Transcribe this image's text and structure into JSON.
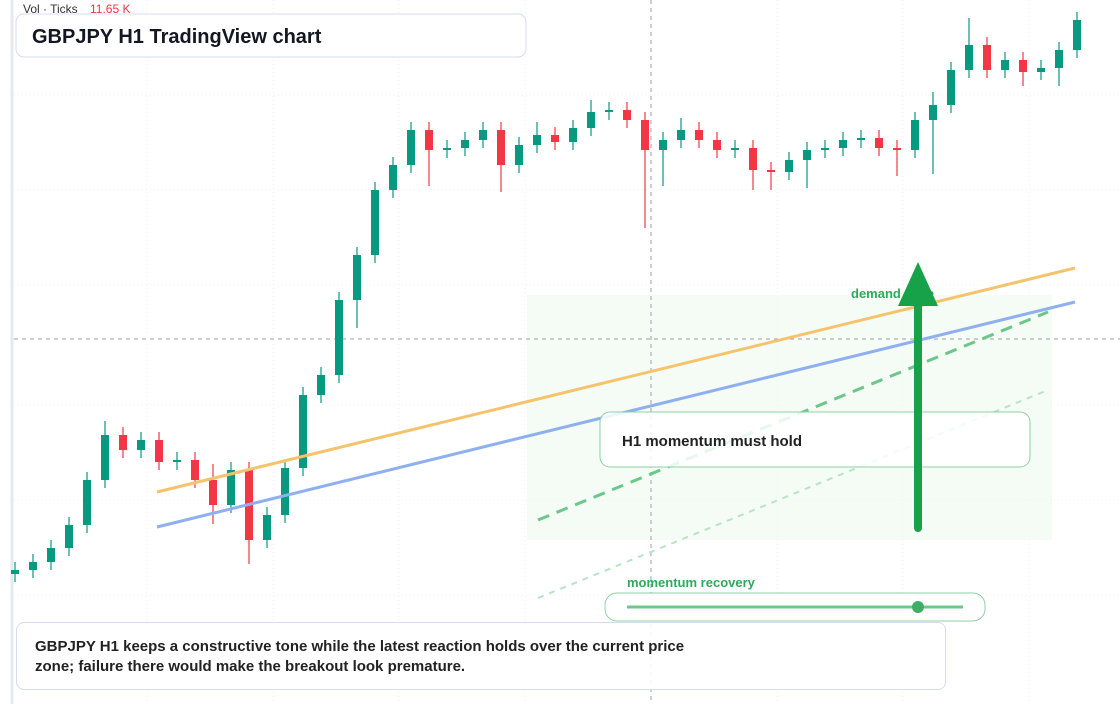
{
  "chart_data": {
    "type": "candlestick",
    "title": "GBPJPY H1 TradingView chart",
    "volume_label": "Vol · Ticks",
    "volume_value": "11.65 K",
    "up_color": "#089981",
    "down_color": "#f23645",
    "ylim": [
      0,
      70.4
    ],
    "candles": [
      [
        13.0,
        14.2,
        12.2,
        13.4
      ],
      [
        13.4,
        15.0,
        12.6,
        14.2
      ],
      [
        14.2,
        16.4,
        13.4,
        15.6
      ],
      [
        15.6,
        18.7,
        14.8,
        17.9
      ],
      [
        17.9,
        23.2,
        17.1,
        22.4
      ],
      [
        22.4,
        28.3,
        21.6,
        26.9
      ],
      [
        26.9,
        27.7,
        24.6,
        25.4
      ],
      [
        25.4,
        27.2,
        24.6,
        26.4
      ],
      [
        26.4,
        27.2,
        23.4,
        24.2
      ],
      [
        24.2,
        25.2,
        23.4,
        24.4
      ],
      [
        24.4,
        25.2,
        21.6,
        22.4
      ],
      [
        22.4,
        24.0,
        18.0,
        19.9
      ],
      [
        19.9,
        24.2,
        19.1,
        23.4
      ],
      [
        23.4,
        24.2,
        14.0,
        16.4
      ],
      [
        16.4,
        19.7,
        15.6,
        18.9
      ],
      [
        18.9,
        24.4,
        18.1,
        23.6
      ],
      [
        23.6,
        31.7,
        22.8,
        30.9
      ],
      [
        30.9,
        33.7,
        30.1,
        32.9
      ],
      [
        32.9,
        41.2,
        32.1,
        40.4
      ],
      [
        40.4,
        45.7,
        37.6,
        44.9
      ],
      [
        44.9,
        52.2,
        44.1,
        51.4
      ],
      [
        51.4,
        54.7,
        50.6,
        53.9
      ],
      [
        53.9,
        58.2,
        53.1,
        57.4
      ],
      [
        57.4,
        58.2,
        51.8,
        55.4
      ],
      [
        55.4,
        56.4,
        54.6,
        55.6
      ],
      [
        55.6,
        57.2,
        54.8,
        56.4
      ],
      [
        56.4,
        58.2,
        55.6,
        57.4
      ],
      [
        57.4,
        58.2,
        51.2,
        53.9
      ],
      [
        53.9,
        56.7,
        53.1,
        55.9
      ],
      [
        55.9,
        58.2,
        55.1,
        56.9
      ],
      [
        56.9,
        57.7,
        55.4,
        56.2
      ],
      [
        56.2,
        58.4,
        55.4,
        57.6
      ],
      [
        57.6,
        60.4,
        56.8,
        59.2
      ],
      [
        59.2,
        60.2,
        58.4,
        59.4
      ],
      [
        59.4,
        60.2,
        57.6,
        58.4
      ],
      [
        58.4,
        59.2,
        47.6,
        55.4
      ],
      [
        55.4,
        57.2,
        51.8,
        56.4
      ],
      [
        56.4,
        58.6,
        55.6,
        57.4
      ],
      [
        57.4,
        58.2,
        55.6,
        56.4
      ],
      [
        56.4,
        57.2,
        54.6,
        55.4
      ],
      [
        55.4,
        56.4,
        54.6,
        55.6
      ],
      [
        55.6,
        56.4,
        51.4,
        53.4
      ],
      [
        53.4,
        54.2,
        51.4,
        53.2
      ],
      [
        53.2,
        55.2,
        52.4,
        54.4
      ],
      [
        54.4,
        56.2,
        51.6,
        55.4
      ],
      [
        55.4,
        56.4,
        54.6,
        55.6
      ],
      [
        55.6,
        57.2,
        54.8,
        56.4
      ],
      [
        56.4,
        57.4,
        55.6,
        56.6
      ],
      [
        56.6,
        57.4,
        54.8,
        55.6
      ],
      [
        55.6,
        56.4,
        52.8,
        55.4
      ],
      [
        55.4,
        59.2,
        54.6,
        58.4
      ],
      [
        58.4,
        61.2,
        53.0,
        59.9
      ],
      [
        59.9,
        64.2,
        59.1,
        63.4
      ],
      [
        63.4,
        68.6,
        62.6,
        65.9
      ],
      [
        65.9,
        66.7,
        62.6,
        63.4
      ],
      [
        63.4,
        65.2,
        62.6,
        64.4
      ],
      [
        64.4,
        65.2,
        61.8,
        63.2
      ],
      [
        63.2,
        64.4,
        62.4,
        63.6
      ],
      [
        63.6,
        66.2,
        61.8,
        65.4
      ],
      [
        65.4,
        69.2,
        64.6,
        68.4
      ]
    ],
    "annotations": {
      "zone_label": "demand zone",
      "momentum_box": "H1 momentum must hold",
      "recovery_label": "momentum recovery",
      "note": "GBPJPY H1 keeps a constructive tone while the latest reaction holds over the current price zone; failure there would make the breakout look premature."
    }
  }
}
